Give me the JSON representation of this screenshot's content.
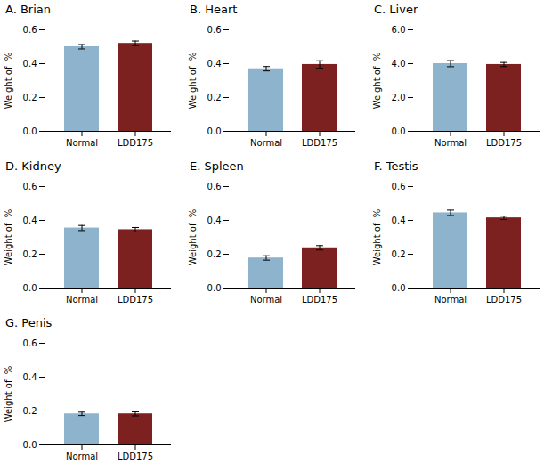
{
  "chart_data": [
    {
      "type": "bar",
      "title": "A. Brian",
      "categories": [
        "Normal",
        "LDD175"
      ],
      "values": [
        0.5,
        0.52
      ],
      "errors": [
        0.013,
        0.014
      ],
      "colors": [
        "#8db4cc",
        "#7d2020"
      ],
      "y_label": "Weight of  %",
      "ylim": [
        0,
        0.6
      ],
      "yticks": [
        {
          "value": 0.0,
          "label": "0.0"
        },
        0.2,
        0.4,
        0.6
      ],
      "grid": false
    },
    {
      "type": "bar",
      "title": "B. Heart",
      "categories": [
        "Normal",
        "LDD175"
      ],
      "values": [
        0.37,
        0.395
      ],
      "errors": [
        0.013,
        0.022
      ],
      "colors": [
        "#8db4cc",
        "#7d2020"
      ],
      "y_label": "Weight of  %",
      "ylim": [
        0,
        0.6
      ],
      "yticks": [
        {
          "value": 0.0,
          "label": "0.0"
        },
        0.2,
        0.4,
        0.6
      ],
      "grid": false
    },
    {
      "type": "bar",
      "title": "C. Liver",
      "categories": [
        "Normal",
        "LDD175"
      ],
      "values": [
        4.0,
        3.95
      ],
      "errors": [
        0.18,
        0.12
      ],
      "colors": [
        "#8db4cc",
        "#7d2020"
      ],
      "y_label": "Weight of  %",
      "ylim": [
        0,
        6.0
      ],
      "yticks": [
        {
          "value": 0.0,
          "label": "0.0"
        },
        {
          "value": 2.0,
          "label": "2.0"
        },
        {
          "value": 4.0,
          "label": "4.0"
        },
        {
          "value": 6.0,
          "label": "6.0"
        }
      ],
      "grid": false
    },
    {
      "type": "bar",
      "title": "D. Kidney",
      "categories": [
        "Normal",
        "LDD175"
      ],
      "values": [
        0.355,
        0.345
      ],
      "errors": [
        0.015,
        0.013
      ],
      "colors": [
        "#8db4cc",
        "#7d2020"
      ],
      "y_label": "Weight of  %",
      "ylim": [
        0,
        0.6
      ],
      "yticks": [
        {
          "value": 0.0,
          "label": "0.0"
        },
        0.2,
        0.4,
        0.6
      ],
      "grid": false
    },
    {
      "type": "bar",
      "title": "E. Spleen",
      "categories": [
        "Normal",
        "LDD175"
      ],
      "values": [
        0.178,
        0.238
      ],
      "errors": [
        0.013,
        0.013
      ],
      "colors": [
        "#8db4cc",
        "#7d2020"
      ],
      "y_label": "Weight of  %",
      "ylim": [
        0,
        0.6
      ],
      "yticks": [
        {
          "value": 0.0,
          "label": "0.0"
        },
        0.2,
        0.4,
        0.6
      ],
      "grid": false
    },
    {
      "type": "bar",
      "title": "F. Testis",
      "categories": [
        "Normal",
        "LDD175"
      ],
      "values": [
        0.445,
        0.415
      ],
      "errors": [
        0.016,
        0.01
      ],
      "colors": [
        "#8db4cc",
        "#7d2020"
      ],
      "y_label": "Weight of  %",
      "ylim": [
        0,
        0.6
      ],
      "yticks": [
        {
          "value": 0.0,
          "label": "0.0"
        },
        0.2,
        0.4,
        0.6
      ],
      "grid": false
    },
    {
      "type": "bar",
      "title": "G. Penis",
      "categories": [
        "Normal",
        "LDD175"
      ],
      "values": [
        0.183,
        0.183
      ],
      "errors": [
        0.01,
        0.012
      ],
      "colors": [
        "#8db4cc",
        "#7d2020"
      ],
      "y_label": "Weight of  %",
      "ylim": [
        0,
        0.6
      ],
      "yticks": [
        {
          "value": 0.0,
          "label": "0.0"
        },
        0.2,
        0.4,
        0.6
      ],
      "grid": false
    }
  ]
}
